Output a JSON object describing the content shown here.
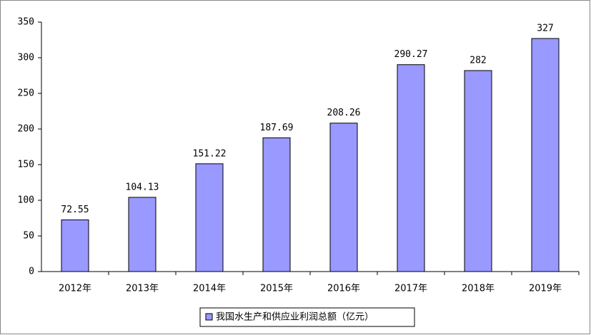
{
  "chart_data": {
    "type": "bar",
    "categories": [
      "2012年",
      "2013年",
      "2014年",
      "2015年",
      "2016年",
      "2017年",
      "2018年",
      "2019年"
    ],
    "series": [
      {
        "name": "我国水生产和供应业利润总额（亿元）",
        "color": "#9999ff",
        "values": [
          72.55,
          104.13,
          151.22,
          187.69,
          208.26,
          290.27,
          282,
          327
        ]
      }
    ],
    "ylim": [
      0,
      350
    ],
    "yticks": [
      0,
      50,
      100,
      150,
      200,
      250,
      300,
      350
    ],
    "legend": "bottom"
  }
}
